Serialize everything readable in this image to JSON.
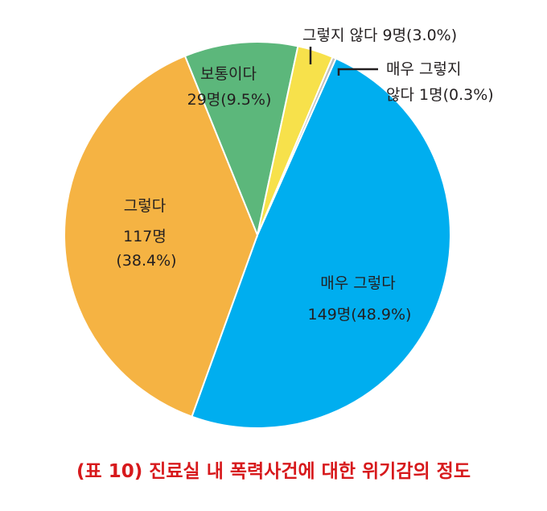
{
  "chart_data": {
    "type": "pie",
    "title": "",
    "slices": [
      {
        "label": "매우 그렇다",
        "count": "149명",
        "percent_text": "(48.9%)",
        "value": 48.9,
        "color": "#00aeef"
      },
      {
        "label": "그렇다",
        "count": "117명",
        "percent_text": "(38.4%)",
        "value": 38.4,
        "color": "#f5b343"
      },
      {
        "label": "보통이다",
        "count": "29명",
        "percent_text": "(9.5%)",
        "value": 9.5,
        "color": "#5cb77b"
      },
      {
        "label": "그렇지 않다",
        "count": "9명",
        "percent_text": "(3.0%)",
        "value": 3.0,
        "color": "#f7e14b"
      },
      {
        "label": "매우 그렇지 않다",
        "count": "1명",
        "percent_text": "(0.3%)",
        "value": 0.3,
        "color": "#bfbfbf"
      }
    ],
    "labels": {
      "very_agree_line1": "매우 그렇다",
      "very_agree_line2": "149명(48.9%)",
      "agree_line1": "그렇다",
      "agree_line2": "117명",
      "agree_line3": "(38.4%)",
      "neutral_line1": "보통이다",
      "neutral_line2": "29명(9.5%)",
      "disagree": "그렇지 않다 9명(3.0%)",
      "very_disagree_line1": "매우 그렇지",
      "very_disagree_line2": "않다 1명(0.3%)"
    }
  },
  "caption": "(표 10) 진료실 내 폭력사건에 대한 위기감의 정도"
}
